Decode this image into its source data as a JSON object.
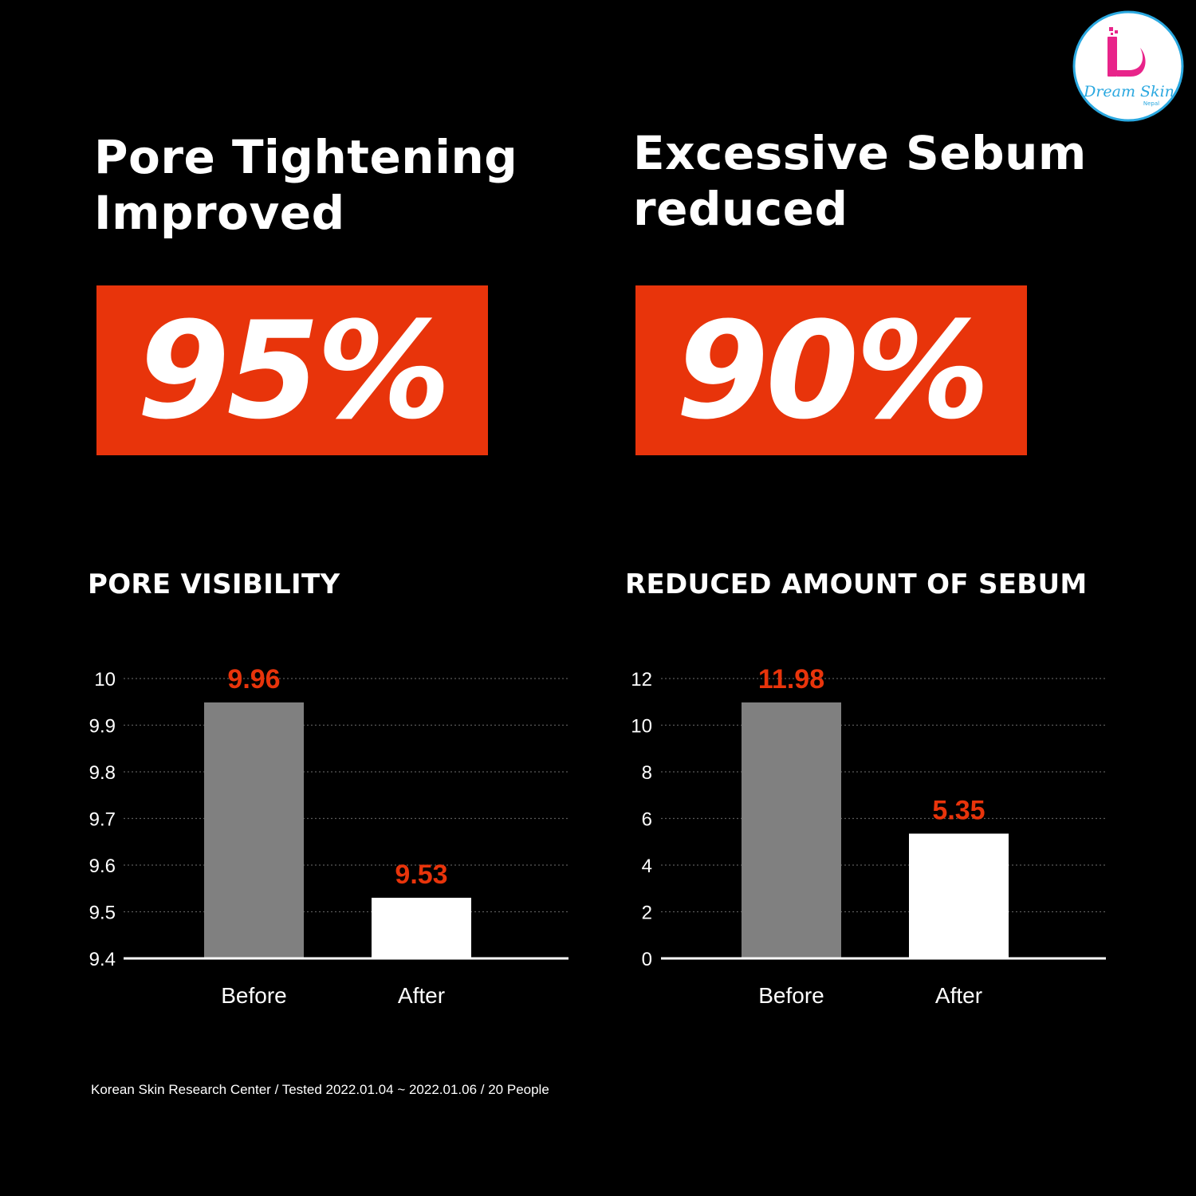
{
  "colors": {
    "background": "#000000",
    "accent": "#e8340b",
    "before_bar": "#808080",
    "after_bar": "#ffffff",
    "text": "#ffffff"
  },
  "left_stat": {
    "heading_line1": "Pore Tightening",
    "heading_line2": "Improved",
    "value": "95%"
  },
  "right_stat": {
    "heading_line1": "Excessive Sebum",
    "heading_line2": "reduced",
    "value": "90%"
  },
  "chart_data": [
    {
      "type": "bar",
      "title": "PORE VISIBILITY",
      "categories": [
        "Before",
        "After"
      ],
      "values": [
        9.96,
        9.53
      ],
      "data_labels": [
        "9.96",
        "9.53"
      ],
      "bar_colors": [
        "#808080",
        "#ffffff"
      ],
      "yticks": [
        "9.4",
        "9.5",
        "9.6",
        "9.7",
        "9.8",
        "9.9",
        "10"
      ],
      "ylim": [
        9.4,
        10
      ],
      "grid": true
    },
    {
      "type": "bar",
      "title": "REDUCED AMOUNT OF SEBUM",
      "categories": [
        "Before",
        "After"
      ],
      "values": [
        11.98,
        5.35
      ],
      "data_labels": [
        "11.98",
        "5.35"
      ],
      "bar_colors": [
        "#808080",
        "#ffffff"
      ],
      "yticks": [
        "0",
        "2",
        "4",
        "6",
        "8",
        "10",
        "12"
      ],
      "ylim": [
        0,
        12
      ],
      "grid": true
    }
  ],
  "footnote": "Korean Skin Research Center / Tested 2022.01.04 ~ 2022.01.06 / 20 People",
  "logo": {
    "icon": "dream-skin-logo",
    "text": "Dream Skin",
    "subtext": "Nepal",
    "ring_color": "#2aa8e0",
    "mark_color": "#e8248a"
  }
}
